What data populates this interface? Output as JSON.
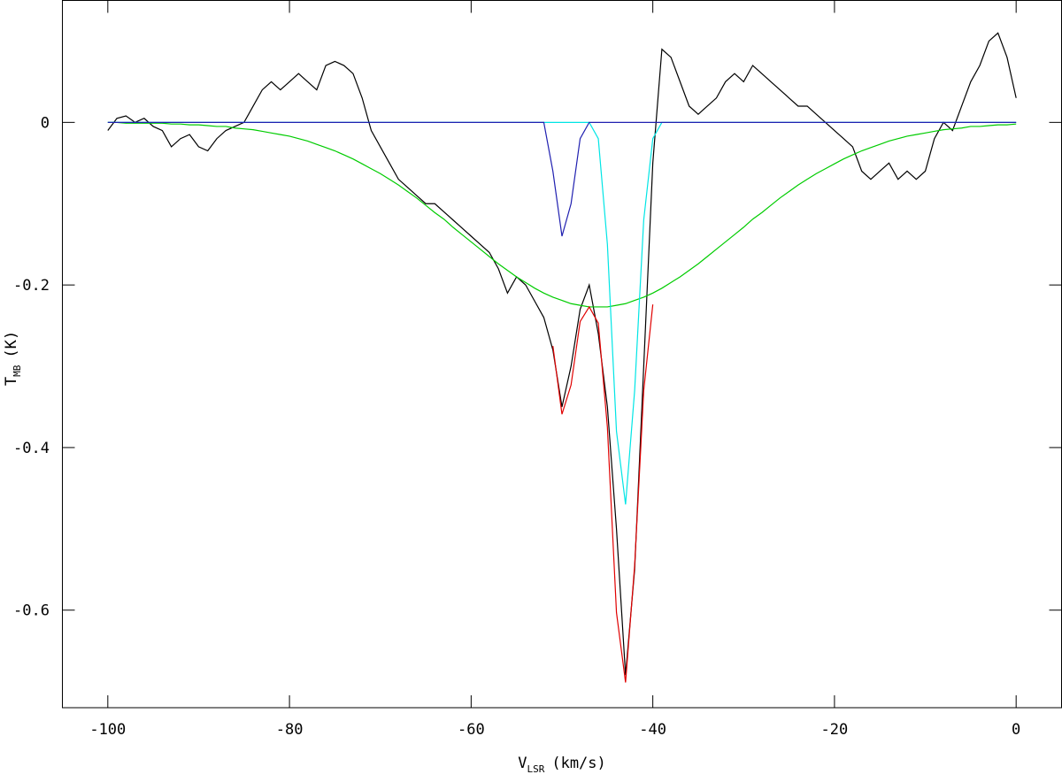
{
  "chart_data": {
    "type": "line",
    "x_label": {
      "main": "V",
      "sub": "LSR",
      "rest": "(km/s)"
    },
    "y_label": {
      "main": "T",
      "sub": "MB",
      "rest": "(K)"
    },
    "xlim": [
      -105,
      5
    ],
    "ylim": [
      -0.72,
      0.15
    ],
    "xticks": [
      -100,
      -80,
      -60,
      -40,
      -20,
      0
    ],
    "yticks": [
      0,
      -0.2,
      -0.4,
      -0.6
    ],
    "x": [
      -100,
      -99,
      -98,
      -97,
      -96,
      -95,
      -94,
      -93,
      -92,
      -91,
      -90,
      -89,
      -88,
      -87,
      -86,
      -85,
      -84,
      -83,
      -82,
      -81,
      -80,
      -79,
      -78,
      -77,
      -76,
      -75,
      -74,
      -73,
      -72,
      -71,
      -70,
      -69,
      -68,
      -67,
      -66,
      -65,
      -64,
      -63,
      -62,
      -61,
      -60,
      -59,
      -58,
      -57,
      -56,
      -55,
      -54,
      -53,
      -52,
      -51,
      -50,
      -49,
      -48,
      -47,
      -46,
      -45,
      -44,
      -43,
      -42,
      -41,
      -40,
      -39,
      -38,
      -37,
      -36,
      -35,
      -34,
      -33,
      -32,
      -31,
      -30,
      -29,
      -28,
      -27,
      -26,
      -25,
      -24,
      -23,
      -22,
      -21,
      -20,
      -19,
      -18,
      -17,
      -16,
      -15,
      -14,
      -13,
      -12,
      -11,
      -10,
      -9,
      -8,
      -7,
      -6,
      -5,
      -4,
      -3,
      -2,
      -1,
      0
    ],
    "series": [
      {
        "color": "#000000",
        "values": [
          -0.01,
          0.005,
          0.008,
          0,
          0.005,
          -0.005,
          -0.01,
          -0.03,
          -0.02,
          -0.015,
          -0.03,
          -0.035,
          -0.02,
          -0.01,
          -0.005,
          0,
          0.02,
          0.04,
          0.05,
          0.04,
          0.05,
          0.06,
          0.05,
          0.04,
          0.07,
          0.075,
          0.07,
          0.06,
          0.03,
          -0.01,
          -0.03,
          -0.05,
          -0.07,
          -0.08,
          -0.09,
          -0.1,
          -0.1,
          -0.11,
          -0.12,
          -0.13,
          -0.14,
          -0.15,
          -0.16,
          -0.18,
          -0.21,
          -0.19,
          -0.2,
          -0.22,
          -0.24,
          -0.28,
          -0.35,
          -0.3,
          -0.23,
          -0.2,
          -0.26,
          -0.35,
          -0.5,
          -0.68,
          -0.55,
          -0.3,
          -0.05,
          0.09,
          0.08,
          0.05,
          0.02,
          0.01,
          0.02,
          0.03,
          0.05,
          0.06,
          0.05,
          0.07,
          0.06,
          0.05,
          0.04,
          0.03,
          0.02,
          0.02,
          0.01,
          0,
          -0.01,
          -0.02,
          -0.03,
          -0.06,
          -0.07,
          -0.06,
          -0.05,
          -0.07,
          -0.06,
          -0.07,
          -0.06,
          -0.02,
          0,
          -0.01,
          0.02,
          0.05,
          0.07,
          0.1,
          0.11,
          0.08,
          0.03
        ]
      },
      {
        "color": "#00cc00",
        "values": [
          0,
          0,
          -0.001,
          -0.001,
          -0.001,
          -0.001,
          -0.001,
          -0.002,
          -0.002,
          -0.003,
          -0.003,
          -0.004,
          -0.005,
          -0.005,
          -0.007,
          -0.008,
          -0.009,
          -0.011,
          -0.013,
          -0.015,
          -0.017,
          -0.02,
          -0.023,
          -0.027,
          -0.031,
          -0.035,
          -0.04,
          -0.045,
          -0.051,
          -0.057,
          -0.063,
          -0.07,
          -0.077,
          -0.085,
          -0.093,
          -0.102,
          -0.111,
          -0.119,
          -0.129,
          -0.138,
          -0.147,
          -0.156,
          -0.165,
          -0.174,
          -0.182,
          -0.19,
          -0.197,
          -0.204,
          -0.21,
          -0.215,
          -0.219,
          -0.223,
          -0.225,
          -0.227,
          -0.227,
          -0.227,
          -0.225,
          -0.223,
          -0.219,
          -0.215,
          -0.21,
          -0.204,
          -0.197,
          -0.19,
          -0.182,
          -0.174,
          -0.165,
          -0.156,
          -0.147,
          -0.138,
          -0.129,
          -0.119,
          -0.111,
          -0.102,
          -0.093,
          -0.085,
          -0.077,
          -0.07,
          -0.063,
          -0.057,
          -0.051,
          -0.045,
          -0.04,
          -0.035,
          -0.031,
          -0.027,
          -0.023,
          -0.02,
          -0.017,
          -0.015,
          -0.013,
          -0.011,
          -0.009,
          -0.008,
          -0.007,
          -0.005,
          -0.005,
          -0.004,
          -0.003,
          -0.003,
          -0.002
        ]
      },
      {
        "color": "#00e5e5",
        "values": [
          0,
          0,
          0,
          0,
          0,
          0,
          0,
          0,
          0,
          0,
          0,
          0,
          0,
          0,
          0,
          0,
          0,
          0,
          0,
          0,
          0,
          0,
          0,
          0,
          0,
          0,
          0,
          0,
          0,
          0,
          0,
          0,
          0,
          0,
          0,
          0,
          0,
          0,
          0,
          0,
          0,
          0,
          0,
          0,
          0,
          0,
          0,
          0,
          0,
          0,
          0,
          0,
          0,
          0,
          -0.02,
          -0.15,
          -0.38,
          -0.47,
          -0.33,
          -0.12,
          -0.02,
          0,
          0,
          0,
          0,
          0,
          0,
          0,
          0,
          0,
          0,
          0,
          0,
          0,
          0,
          0,
          0,
          0,
          0,
          0,
          0,
          0,
          0,
          0,
          0,
          0,
          0,
          0,
          0,
          0,
          0,
          0,
          0,
          0,
          0,
          0,
          0,
          0,
          0,
          0,
          0
        ]
      },
      {
        "color": "#2020b0",
        "values": [
          0,
          0,
          0,
          0,
          0,
          0,
          0,
          0,
          0,
          0,
          0,
          0,
          0,
          0,
          0,
          0,
          0,
          0,
          0,
          0,
          0,
          0,
          0,
          0,
          0,
          0,
          0,
          0,
          0,
          0,
          0,
          0,
          0,
          0,
          0,
          0,
          0,
          0,
          0,
          0,
          0,
          0,
          0,
          0,
          0,
          0,
          0,
          0,
          0,
          -0.06,
          -0.14,
          -0.1,
          -0.02,
          0,
          0,
          0,
          0,
          0,
          0,
          0,
          0,
          0,
          0,
          0,
          0,
          0,
          0,
          0,
          0,
          0,
          0,
          0,
          0,
          0,
          0,
          0,
          0,
          0,
          0,
          0,
          0,
          0,
          0,
          0,
          0,
          0,
          0,
          0,
          0,
          0,
          0,
          0,
          0,
          0,
          0,
          0,
          0,
          0,
          0,
          0,
          0
        ]
      },
      {
        "color": "#e00000",
        "values": [
          null,
          null,
          null,
          null,
          null,
          null,
          null,
          null,
          null,
          null,
          null,
          null,
          null,
          null,
          null,
          null,
          null,
          null,
          null,
          null,
          null,
          null,
          null,
          null,
          null,
          null,
          null,
          null,
          null,
          null,
          null,
          null,
          null,
          null,
          null,
          null,
          null,
          null,
          null,
          null,
          null,
          null,
          null,
          null,
          null,
          null,
          null,
          null,
          null,
          -0.275,
          -0.359,
          -0.323,
          -0.245,
          -0.227,
          -0.247,
          -0.375,
          -0.603,
          -0.689,
          -0.545,
          -0.33,
          -0.224,
          null,
          null,
          null,
          null,
          null,
          null,
          null,
          null,
          null,
          null,
          null,
          null,
          null,
          null,
          null,
          null,
          null,
          null,
          null,
          null,
          null,
          null,
          null,
          null,
          null,
          null,
          null,
          null,
          null,
          null,
          null,
          null,
          null,
          null,
          null,
          null,
          null,
          null,
          null,
          null
        ]
      }
    ]
  }
}
